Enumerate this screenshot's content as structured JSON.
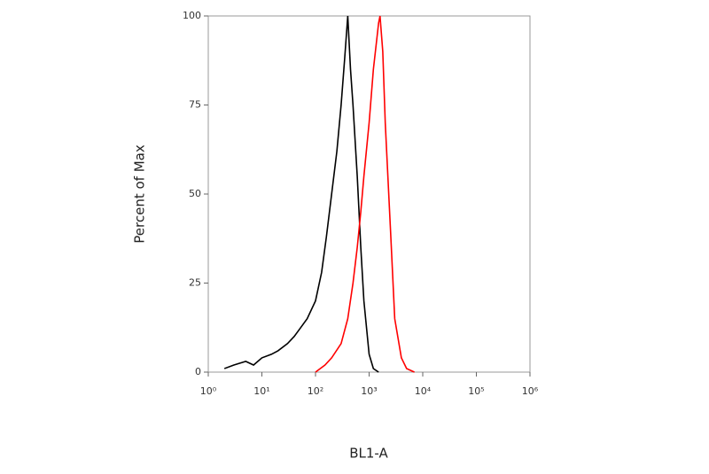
{
  "chart_data": {
    "type": "line",
    "xscale": "log",
    "x_label": "BL1-A",
    "y_label": "Percent of Max",
    "xlim": [
      1,
      1000000
    ],
    "ylim": [
      0,
      100
    ],
    "xticks": [
      {
        "value": 1,
        "label": "10⁰"
      },
      {
        "value": 10,
        "label": "10¹"
      },
      {
        "value": 100,
        "label": "10²"
      },
      {
        "value": 1000,
        "label": "10³"
      },
      {
        "value": 10000,
        "label": "10⁴"
      },
      {
        "value": 100000,
        "label": "10⁵"
      },
      {
        "value": 1000000,
        "label": "10⁶"
      }
    ],
    "yticks": [
      0,
      25,
      50,
      75,
      100
    ],
    "series": [
      {
        "color": "#000000",
        "x": [
          2,
          3,
          5,
          7,
          10,
          15,
          20,
          30,
          40,
          50,
          70,
          100,
          130,
          160,
          200,
          250,
          300,
          350,
          400,
          450,
          500,
          600,
          700,
          800,
          1000,
          1200,
          1500
        ],
        "values": [
          1,
          2,
          3,
          2,
          4,
          5,
          6,
          8,
          10,
          12,
          15,
          20,
          28,
          38,
          50,
          62,
          75,
          88,
          100,
          85,
          75,
          55,
          35,
          20,
          5,
          1,
          0
        ]
      },
      {
        "color": "#ff0000",
        "x": [
          100,
          150,
          200,
          300,
          400,
          500,
          600,
          700,
          800,
          1000,
          1200,
          1500,
          1600,
          1800,
          2000,
          2500,
          3000,
          4000,
          5000,
          7000
        ],
        "values": [
          0,
          2,
          4,
          8,
          15,
          25,
          35,
          45,
          55,
          70,
          85,
          98,
          100,
          90,
          70,
          40,
          15,
          4,
          1,
          0
        ]
      }
    ]
  }
}
